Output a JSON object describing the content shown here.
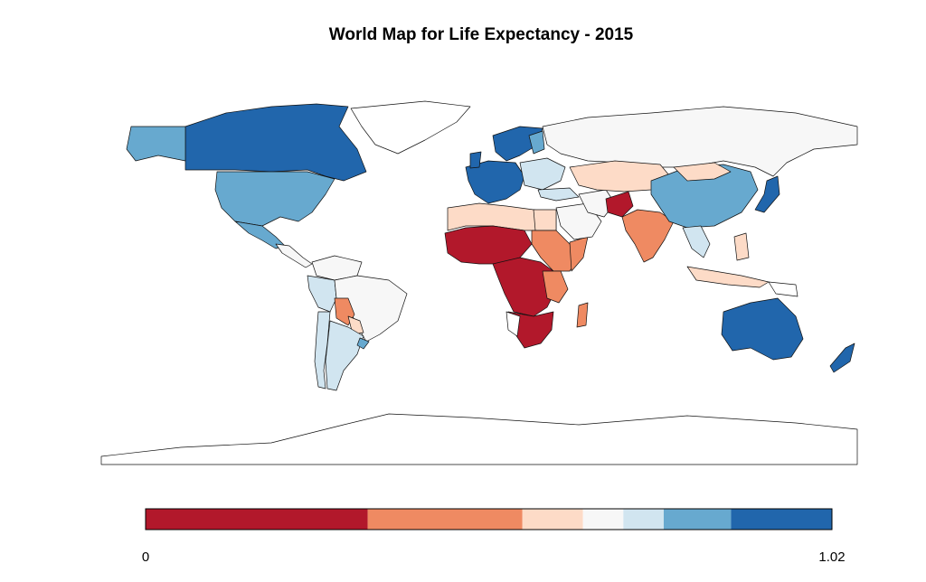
{
  "title": "World Map for Life Expectancy - 2015",
  "legend": {
    "min_label": "0",
    "max_label": "1.02",
    "breaks": [
      0,
      0.33,
      0.56,
      0.65,
      0.71,
      0.77,
      0.87,
      1.02
    ],
    "colors": [
      "#b2182b",
      "#ef8a62",
      "#fddbc7",
      "#f7f7f7",
      "#d1e5f0",
      "#67a9cf",
      "#2166ac"
    ]
  },
  "colors": {
    "no_data": "#ffffff",
    "outline": "#111111"
  }
}
